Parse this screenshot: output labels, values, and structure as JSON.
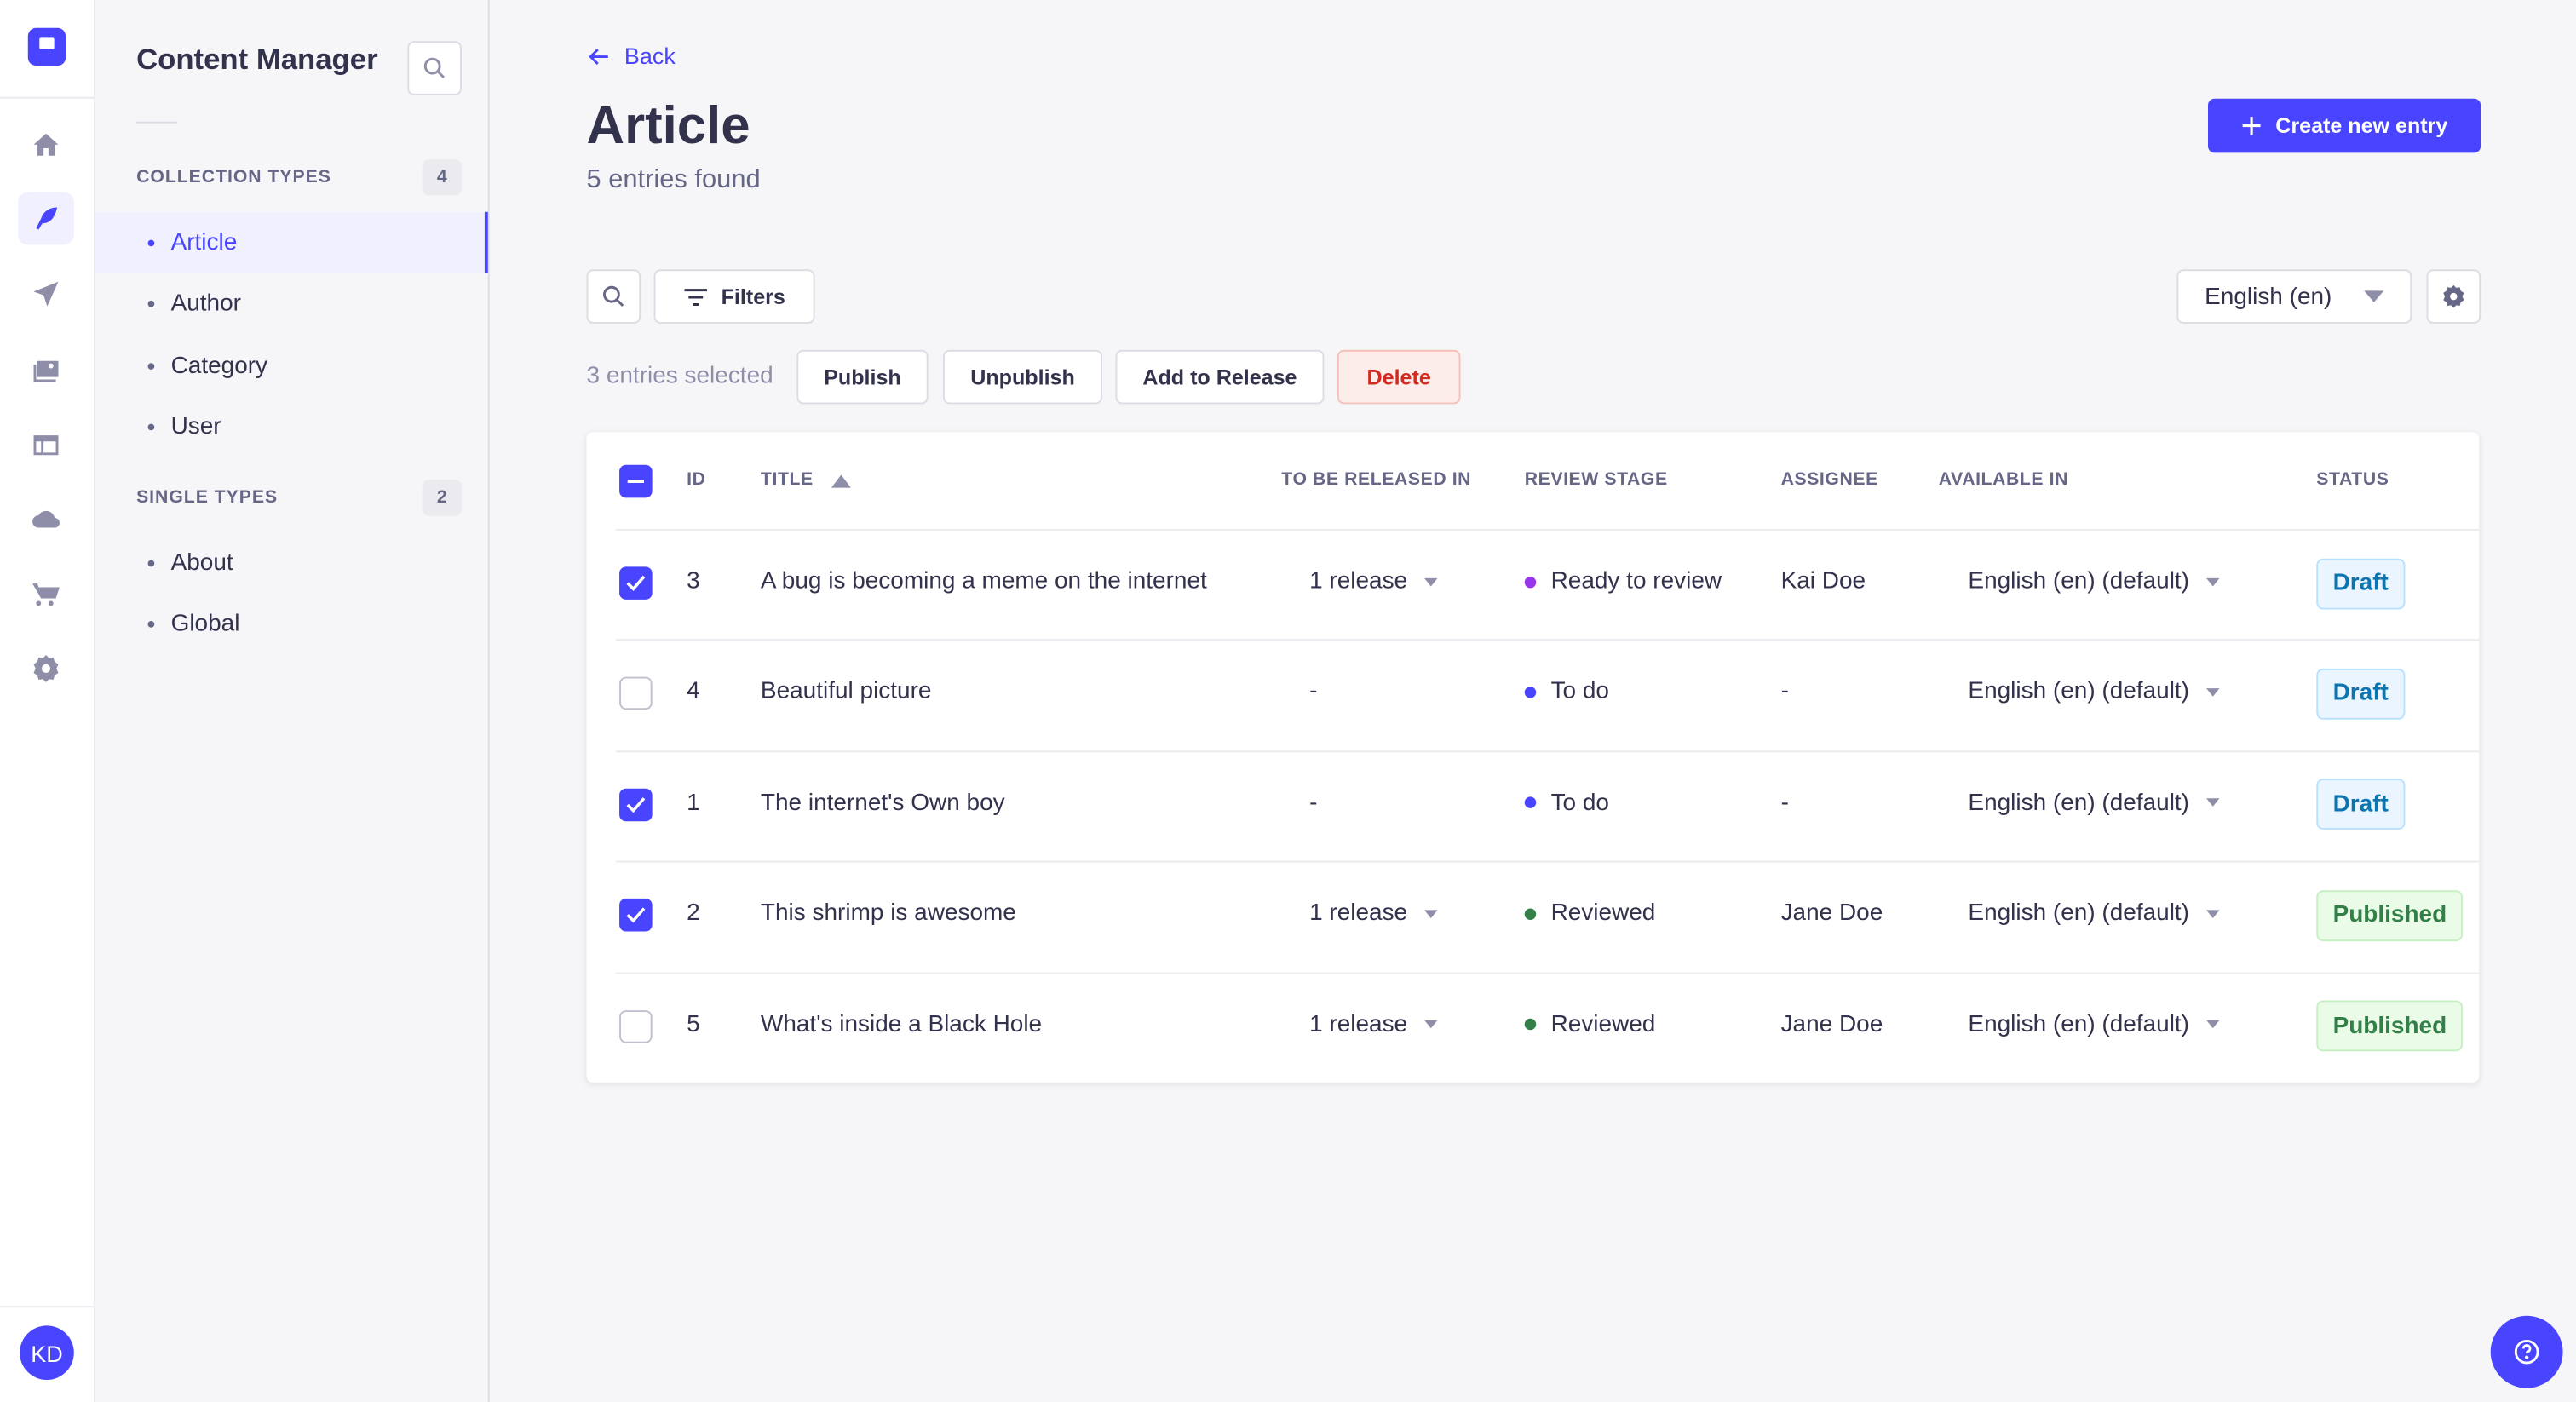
{
  "colors": {
    "primary": "#4945ff",
    "draft": "#0c75af",
    "published": "#328048",
    "danger": "#d02b20"
  },
  "rail": {
    "items": [
      "home-icon",
      "feather-icon",
      "paper-plane-icon",
      "images-icon",
      "layout-icon",
      "cloud-icon",
      "cart-icon",
      "gear-icon"
    ],
    "avatar": "KD"
  },
  "sidebar": {
    "title": "Content Manager",
    "collection_label": "COLLECTION TYPES",
    "collection_count": "4",
    "collection_items": [
      "Article",
      "Author",
      "Category",
      "User"
    ],
    "single_label": "SINGLE TYPES",
    "single_count": "2",
    "single_items": [
      "About",
      "Global"
    ]
  },
  "header": {
    "back": "Back",
    "title": "Article",
    "subtitle": "5 entries found",
    "create": "Create new entry"
  },
  "toolbar": {
    "filters": "Filters",
    "locale": "English (en)"
  },
  "bulk": {
    "selected": "3 entries selected",
    "publish": "Publish",
    "unpublish": "Unpublish",
    "release": "Add to Release",
    "delete": "Delete"
  },
  "table": {
    "headers": [
      "ID",
      "TITLE",
      "TO BE RELEASED IN",
      "REVIEW STAGE",
      "ASSIGNEE",
      "AVAILABLE IN",
      "STATUS"
    ],
    "sort": "TITLE ascending",
    "rows": [
      {
        "checked": true,
        "id": "3",
        "title": "A bug is becoming a meme on the internet",
        "release": "1 release",
        "stage": "Ready to review",
        "stage_color": "#9736e8",
        "assignee": "Kai Doe",
        "locale": "English (en) (default)",
        "status": "Draft"
      },
      {
        "checked": false,
        "id": "4",
        "title": "Beautiful picture",
        "release": "-",
        "stage": "To do",
        "stage_color": "#4945ff",
        "assignee": "-",
        "locale": "English (en) (default)",
        "status": "Draft"
      },
      {
        "checked": true,
        "id": "1",
        "title": "The internet's Own boy",
        "release": "-",
        "stage": "To do",
        "stage_color": "#4945ff",
        "assignee": "-",
        "locale": "English (en) (default)",
        "status": "Draft"
      },
      {
        "checked": true,
        "id": "2",
        "title": "This shrimp is awesome",
        "release": "1 release",
        "stage": "Reviewed",
        "stage_color": "#328048",
        "assignee": "Jane Doe",
        "locale": "English (en) (default)",
        "status": "Published"
      },
      {
        "checked": false,
        "id": "5",
        "title": "What's inside a Black Hole",
        "release": "1 release",
        "stage": "Reviewed",
        "stage_color": "#328048",
        "assignee": "Jane Doe",
        "locale": "English (en) (default)",
        "status": "Published"
      }
    ]
  }
}
